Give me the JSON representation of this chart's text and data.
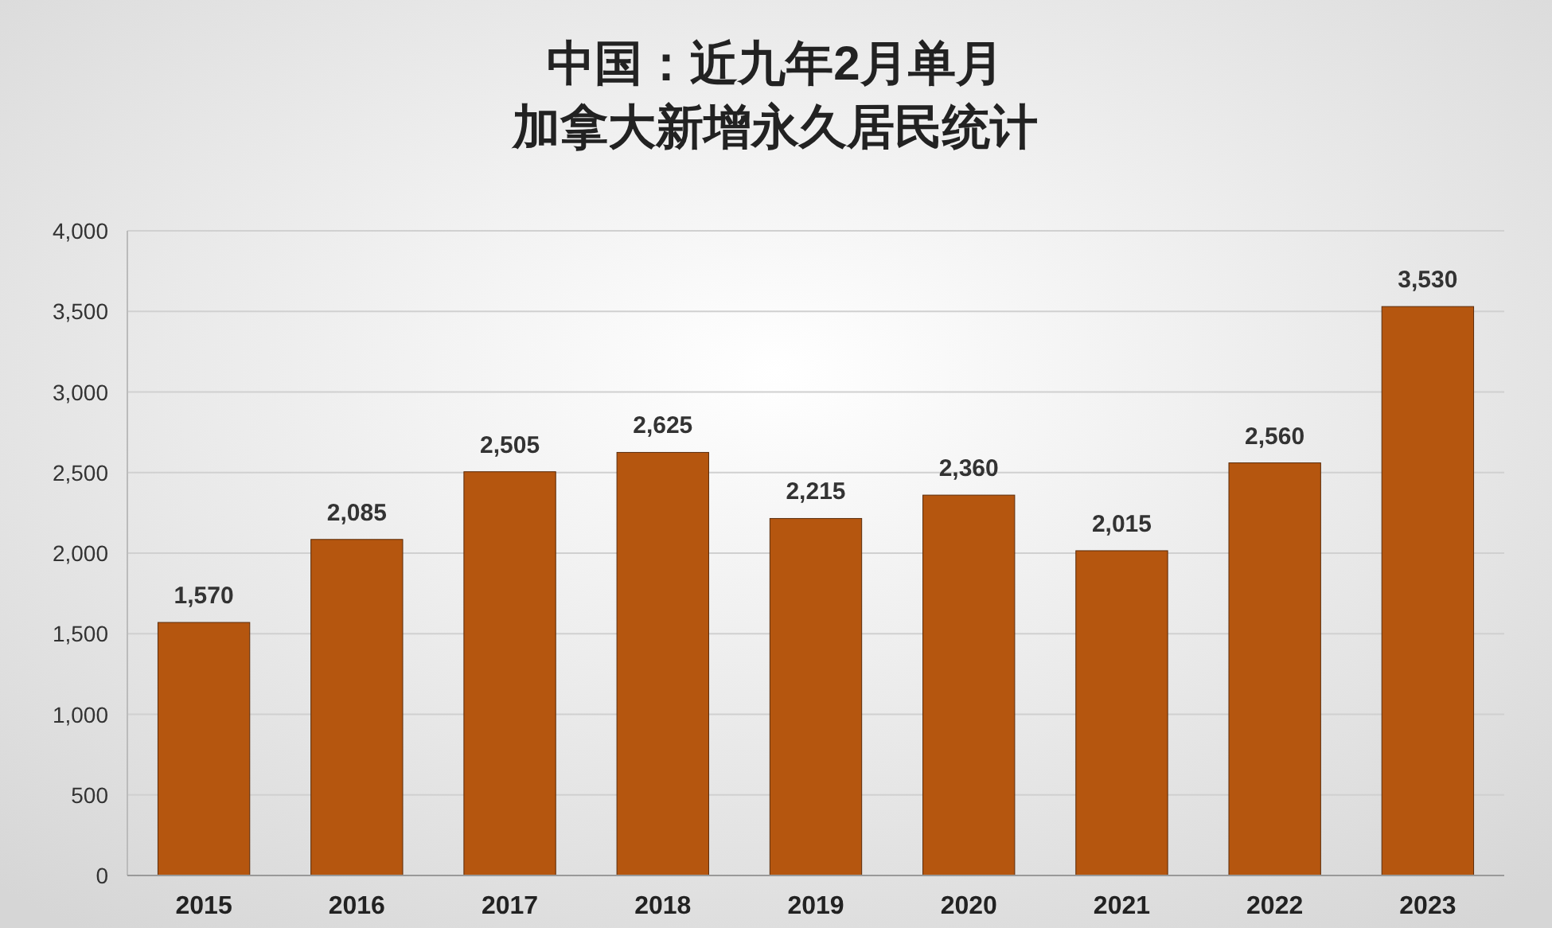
{
  "chart_data": {
    "type": "bar",
    "title": "中国：近九年2月单月",
    "subtitle": "加拿大新增永久居民统计",
    "categories": [
      "2015",
      "2016",
      "2017",
      "2018",
      "2019",
      "2020",
      "2021",
      "2022",
      "2023"
    ],
    "values": [
      1570,
      2085,
      2505,
      2625,
      2215,
      2360,
      2015,
      2560,
      3530
    ],
    "value_labels": [
      "1,570",
      "2,085",
      "2,505",
      "2,625",
      "2,215",
      "2,360",
      "2,015",
      "2,560",
      "3,530"
    ],
    "color": "#b5560f",
    "ylim": [
      0,
      4000
    ],
    "yticks": [
      {
        "value": 0,
        "label": "0"
      },
      {
        "value": 500,
        "label": "500"
      },
      {
        "value": 1000,
        "label": "1,000"
      },
      {
        "value": 1500,
        "label": "1,500"
      },
      {
        "value": 2000,
        "label": "2,000"
      },
      {
        "value": 2500,
        "label": "2,500"
      },
      {
        "value": 3000,
        "label": "3,000"
      },
      {
        "value": 3500,
        "label": "3,500"
      },
      {
        "value": 4000,
        "label": "4,000"
      }
    ],
    "grid": "y"
  }
}
